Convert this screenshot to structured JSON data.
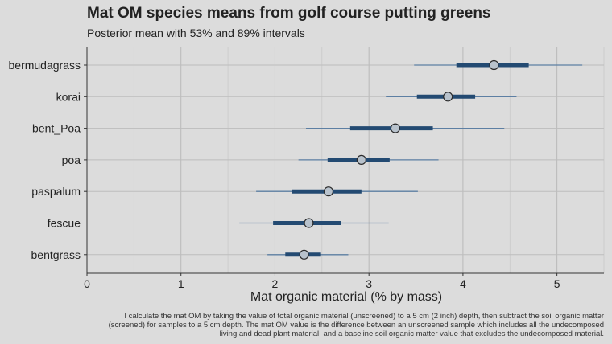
{
  "chart_data": {
    "type": "pointinterval",
    "title": "Mat OM species means from golf course putting greens",
    "subtitle": "Posterior mean with 53% and 89% intervals",
    "xlabel": "Mat organic material (% by mass)",
    "ylabel": "",
    "xlim": [
      0,
      5.5
    ],
    "xticks": [
      0,
      1,
      2,
      3,
      4,
      5
    ],
    "grid": true,
    "caption": "I calculate the mat OM by taking the value of total organic material (unscreened) to a 5 cm (2 inch) depth, then subtract the soil organic matter (screened) for samples to a 5 cm depth. The mat OM value is the difference between an unscreened sample which includes all the undecomposed living and dead plant material, and a baseline soil organic matter value that excludes the undecomposed material.",
    "colors": {
      "interval": "#234a72",
      "thin": "#5d7fa3",
      "point_fill": "#b8c2cc",
      "point_stroke": "#2b2b2b"
    },
    "categories": [
      "bermudagrass",
      "korai",
      "bent_Poa",
      "poa",
      "paspalum",
      "fescue",
      "bentgrass"
    ],
    "series": [
      {
        "name": "bermudagrass",
        "mean": 4.33,
        "ci53": [
          3.93,
          4.7
        ],
        "ci89": [
          3.48,
          5.27
        ]
      },
      {
        "name": "korai",
        "mean": 3.84,
        "ci53": [
          3.51,
          4.13
        ],
        "ci89": [
          3.18,
          4.57
        ]
      },
      {
        "name": "bent_Poa",
        "mean": 3.28,
        "ci53": [
          2.8,
          3.68
        ],
        "ci89": [
          2.33,
          4.44
        ]
      },
      {
        "name": "poa",
        "mean": 2.92,
        "ci53": [
          2.56,
          3.22
        ],
        "ci89": [
          2.25,
          3.74
        ]
      },
      {
        "name": "paspalum",
        "mean": 2.57,
        "ci53": [
          2.18,
          2.92
        ],
        "ci89": [
          1.8,
          3.52
        ]
      },
      {
        "name": "fescue",
        "mean": 2.36,
        "ci53": [
          1.98,
          2.7
        ],
        "ci89": [
          1.62,
          3.21
        ]
      },
      {
        "name": "bentgrass",
        "mean": 2.31,
        "ci53": [
          2.11,
          2.49
        ],
        "ci89": [
          1.92,
          2.78
        ]
      }
    ]
  }
}
